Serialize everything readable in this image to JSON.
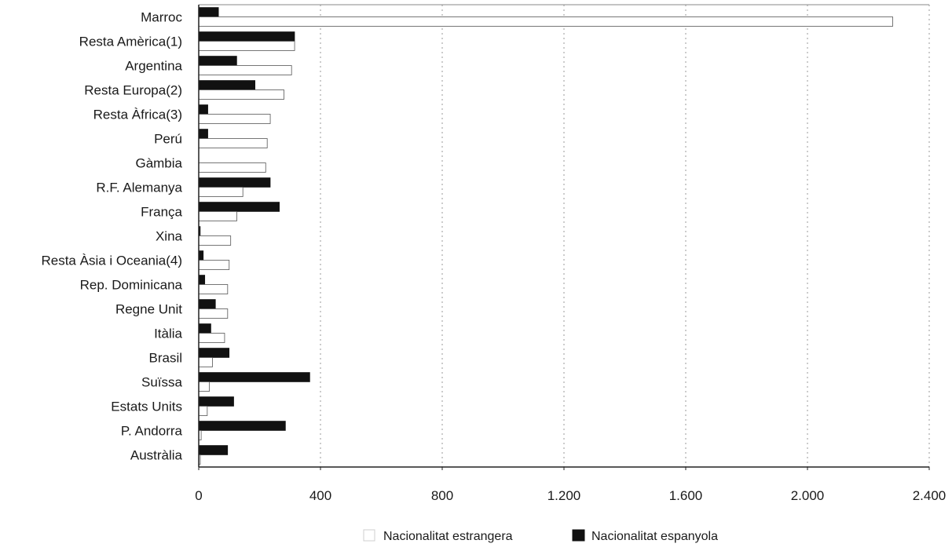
{
  "chart_data": {
    "type": "bar",
    "orientation": "horizontal",
    "categories": [
      "Marroc",
      "Resta Amèrica(1)",
      "Argentina",
      "Resta Europa(2)",
      "Resta Àfrica(3)",
      "Perú",
      "Gàmbia",
      "R.F. Alemanya",
      "França",
      "Xina",
      "Resta Àsia i Oceania(4)",
      "Rep. Dominicana",
      "Regne Unit",
      "Itàlia",
      "Brasil",
      "Suïssa",
      "Estats Units",
      "P. Andorra",
      "Austràlia"
    ],
    "series": [
      {
        "name": "Nacionalitat estrangera",
        "color": "#ffffff",
        "values": [
          2280,
          315,
          305,
          280,
          235,
          225,
          220,
          145,
          125,
          105,
          100,
          95,
          95,
          85,
          45,
          35,
          28,
          8,
          5
        ]
      },
      {
        "name": "Nacionalitat espanyola",
        "color": "#111111",
        "values": [
          65,
          315,
          125,
          185,
          30,
          30,
          0,
          235,
          265,
          5,
          15,
          20,
          55,
          40,
          100,
          365,
          115,
          285,
          95
        ]
      }
    ],
    "xlim": [
      0,
      2400
    ],
    "xticks": [
      0,
      400,
      800,
      1200,
      1600,
      2000,
      2400
    ],
    "xtick_labels": [
      "0",
      "400",
      "800",
      "1.200",
      "1.600",
      "2.000",
      "2.400"
    ],
    "grid": true,
    "legend_position": "bottom-center",
    "title": "",
    "xlabel": "",
    "ylabel": ""
  }
}
